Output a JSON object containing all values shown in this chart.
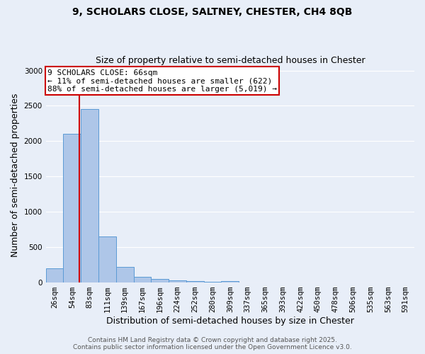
{
  "title_line1": "9, SCHOLARS CLOSE, SALTNEY, CHESTER, CH4 8QB",
  "title_line2": "Size of property relative to semi-detached houses in Chester",
  "xlabel": "Distribution of semi-detached houses by size in Chester",
  "ylabel": "Number of semi-detached properties",
  "categories": [
    "26sqm",
    "54sqm",
    "83sqm",
    "111sqm",
    "139sqm",
    "167sqm",
    "196sqm",
    "224sqm",
    "252sqm",
    "280sqm",
    "309sqm",
    "337sqm",
    "365sqm",
    "393sqm",
    "422sqm",
    "450sqm",
    "478sqm",
    "506sqm",
    "535sqm",
    "563sqm",
    "591sqm"
  ],
  "values": [
    200,
    2100,
    2450,
    650,
    225,
    85,
    50,
    35,
    25,
    15,
    25,
    0,
    0,
    0,
    0,
    0,
    0,
    0,
    0,
    0,
    0
  ],
  "bar_color": "#aec6e8",
  "bar_edge_color": "#5b9bd5",
  "marker_color": "#cc0000",
  "annotation_line1": "9 SCHOLARS CLOSE: 66sqm",
  "annotation_line2": "← 11% of semi-detached houses are smaller (622)",
  "annotation_line3": "88% of semi-detached houses are larger (5,019) →",
  "annotation_box_color": "#ffffff",
  "annotation_box_edge_color": "#cc0000",
  "ylim": [
    0,
    3050
  ],
  "yticks": [
    0,
    500,
    1000,
    1500,
    2000,
    2500,
    3000
  ],
  "footer1": "Contains HM Land Registry data © Crown copyright and database right 2025.",
  "footer2": "Contains public sector information licensed under the Open Government Licence v3.0.",
  "background_color": "#e8eef8",
  "grid_color": "#ffffff",
  "title_fontsize": 10,
  "subtitle_fontsize": 9,
  "axis_label_fontsize": 9,
  "tick_fontsize": 7.5,
  "footer_fontsize": 6.5,
  "annotation_fontsize": 8
}
